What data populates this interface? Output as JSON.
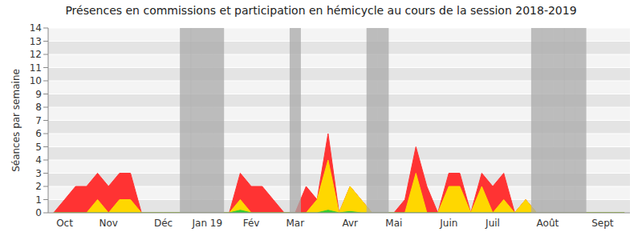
{
  "chart_data": {
    "type": "area",
    "title": "Présences en commissions et participation en hémicycle au cours de la session 2018-2019",
    "y_label": "Séances par semaine",
    "categories": [
      null,
      "Oct",
      null,
      null,
      null,
      "Nov",
      null,
      null,
      null,
      null,
      "Déc",
      null,
      null,
      null,
      "Jan 19",
      null,
      null,
      null,
      "Fév",
      null,
      null,
      null,
      "Mar",
      null,
      null,
      null,
      null,
      "Avr",
      null,
      null,
      null,
      "Mai",
      null,
      null,
      null,
      null,
      "Juin",
      null,
      null,
      null,
      "Juil",
      null,
      null,
      null,
      null,
      "Août",
      null,
      null,
      null,
      null,
      "Sept",
      null,
      null
    ],
    "series": [
      {
        "color": "#ff3333",
        "values": [
          0,
          1,
          2,
          2,
          3,
          2,
          3,
          3,
          0,
          0,
          0,
          0,
          0,
          0,
          0,
          0,
          0,
          3,
          2,
          2,
          1,
          0,
          0,
          2,
          1,
          6,
          0,
          2,
          1,
          0,
          0,
          0,
          1,
          5,
          2,
          0,
          3,
          3,
          0,
          3,
          2,
          3,
          0,
          1,
          0,
          0,
          0,
          0,
          0,
          0,
          0,
          0,
          0
        ]
      },
      {
        "color": "#ffd700",
        "values": [
          0,
          0,
          0,
          0,
          1,
          0,
          1,
          1,
          0,
          0,
          0,
          0,
          0,
          0,
          0,
          0,
          0,
          1,
          0,
          0,
          0,
          0,
          0,
          0,
          1,
          4,
          0,
          2,
          1,
          0,
          0,
          0,
          0,
          3,
          0,
          0,
          2,
          2,
          0,
          2,
          0,
          1,
          0,
          1,
          0,
          0,
          0,
          0,
          0,
          0,
          0,
          0,
          0
        ]
      },
      {
        "color": "#33cc33",
        "values": [
          0,
          0,
          0,
          0,
          0,
          0,
          0,
          0,
          0,
          0,
          0,
          0,
          0,
          0,
          0,
          0,
          0,
          0.2,
          0,
          0,
          0,
          0,
          0,
          0,
          0,
          0.2,
          0,
          0.1,
          0,
          0,
          0,
          0,
          0,
          0,
          0,
          0,
          0,
          0,
          0,
          0,
          0,
          0,
          0,
          0,
          0,
          0,
          0,
          0,
          0,
          0,
          0,
          0,
          0
        ]
      }
    ],
    "vacation": [
      false,
      false,
      false,
      false,
      false,
      false,
      false,
      false,
      false,
      false,
      false,
      false,
      true,
      true,
      true,
      true,
      false,
      false,
      false,
      false,
      false,
      false,
      true,
      false,
      false,
      false,
      false,
      false,
      false,
      true,
      true,
      false,
      false,
      false,
      false,
      false,
      false,
      false,
      false,
      false,
      false,
      false,
      false,
      false,
      true,
      true,
      true,
      true,
      true,
      false,
      false,
      false,
      false
    ],
    "ylim": [
      0,
      14
    ],
    "yticks": [
      0,
      1,
      2,
      3,
      4,
      5,
      6,
      7,
      8,
      9,
      10,
      11,
      12,
      13,
      14
    ],
    "grid": true,
    "stacked": false
  }
}
